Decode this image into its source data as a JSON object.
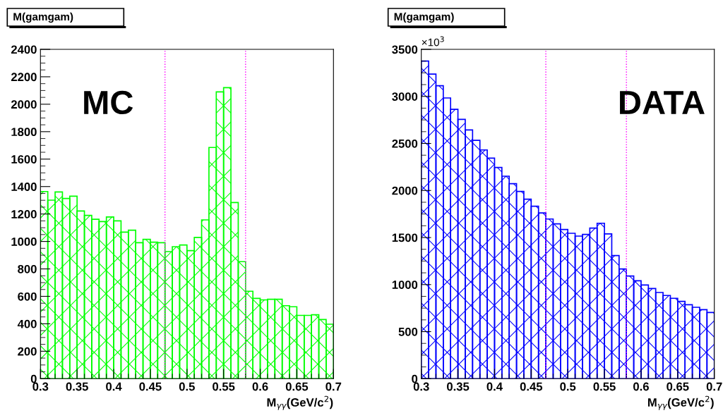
{
  "chart_data": [
    {
      "type": "histogram",
      "title": "M(gamgam)",
      "xlabel": "M$_{γγ}$(GeV/c$^{2}$)",
      "color": "#00ff00",
      "grid": false,
      "legend": false,
      "bins": [
        0.3,
        0.31,
        0.32,
        0.33,
        0.34,
        0.35,
        0.36,
        0.37,
        0.38,
        0.39,
        0.4,
        0.41,
        0.42,
        0.43,
        0.44,
        0.45,
        0.46,
        0.47,
        0.48,
        0.49,
        0.5,
        0.51,
        0.52,
        0.53,
        0.54,
        0.55,
        0.56,
        0.57,
        0.58,
        0.59,
        0.6,
        0.61,
        0.62,
        0.63,
        0.64,
        0.65,
        0.66,
        0.67,
        0.68,
        0.69,
        0.7
      ],
      "values": [
        1364,
        1301,
        1361,
        1313,
        1330,
        1222,
        1190,
        1162,
        1145,
        1178,
        1150,
        1068,
        1082,
        991,
        1015,
        995,
        991,
        926,
        962,
        974,
        933,
        1029,
        1157,
        1685,
        2090,
        2121,
        1284,
        853,
        637,
        585,
        574,
        579,
        579,
        532,
        524,
        461,
        461,
        466,
        431,
        397
      ],
      "xlim": [
        0.3,
        0.7
      ],
      "xticks": [
        0.3,
        0.35,
        0.4,
        0.45,
        0.5,
        0.55,
        0.6,
        0.65,
        0.7
      ],
      "ylim": [
        0,
        2400
      ],
      "yticks": [
        0,
        200,
        400,
        600,
        800,
        1000,
        1200,
        1400,
        1600,
        1800,
        2000,
        2200,
        2400
      ],
      "ref_lines": [
        {
          "axis": "x",
          "value": 0.47,
          "color": "#ff00ff",
          "line_style": "dotted"
        },
        {
          "axis": "x",
          "value": 0.58,
          "color": "#ff00ff",
          "line_style": "dotted"
        }
      ],
      "annotations": [
        "MC"
      ]
    },
    {
      "type": "histogram",
      "title": "M(gamgam)",
      "xlabel": "M$_{γγ}$(GeV/c$^{2}$)",
      "color": "#0000ff",
      "grid": false,
      "legend": false,
      "bins": [
        0.3,
        0.31,
        0.32,
        0.33,
        0.34,
        0.35,
        0.36,
        0.37,
        0.38,
        0.39,
        0.4,
        0.41,
        0.42,
        0.43,
        0.44,
        0.45,
        0.46,
        0.47,
        0.48,
        0.49,
        0.5,
        0.51,
        0.52,
        0.53,
        0.54,
        0.55,
        0.56,
        0.57,
        0.58,
        0.59,
        0.6,
        0.61,
        0.62,
        0.63,
        0.64,
        0.65,
        0.66,
        0.67,
        0.68,
        0.69,
        0.7
      ],
      "values": [
        3375,
        3237,
        3113,
        2983,
        2863,
        2756,
        2643,
        2533,
        2431,
        2344,
        2244,
        2152,
        2072,
        1990,
        1907,
        1832,
        1762,
        1697,
        1645,
        1585,
        1545,
        1515,
        1533,
        1600,
        1652,
        1538,
        1308,
        1166,
        1091,
        1041,
        996,
        958,
        916,
        884,
        854,
        821,
        786,
        759,
        734,
        704
      ],
      "xlim": [
        0.3,
        0.7
      ],
      "xticks": [
        0.3,
        0.35,
        0.4,
        0.45,
        0.5,
        0.55,
        0.6,
        0.65,
        0.7
      ],
      "ylim": [
        0,
        3500
      ],
      "yticks": [
        0,
        500,
        1000,
        1500,
        2000,
        2500,
        3000,
        3500
      ],
      "ref_lines": [
        {
          "axis": "x",
          "value": 0.47,
          "color": "#ff00ff",
          "line_style": "dotted"
        },
        {
          "axis": "x",
          "value": 0.58,
          "color": "#ff00ff",
          "line_style": "dotted"
        }
      ],
      "ylabel": "×10$^{3}$",
      "annotations": [
        "DATA"
      ]
    }
  ]
}
